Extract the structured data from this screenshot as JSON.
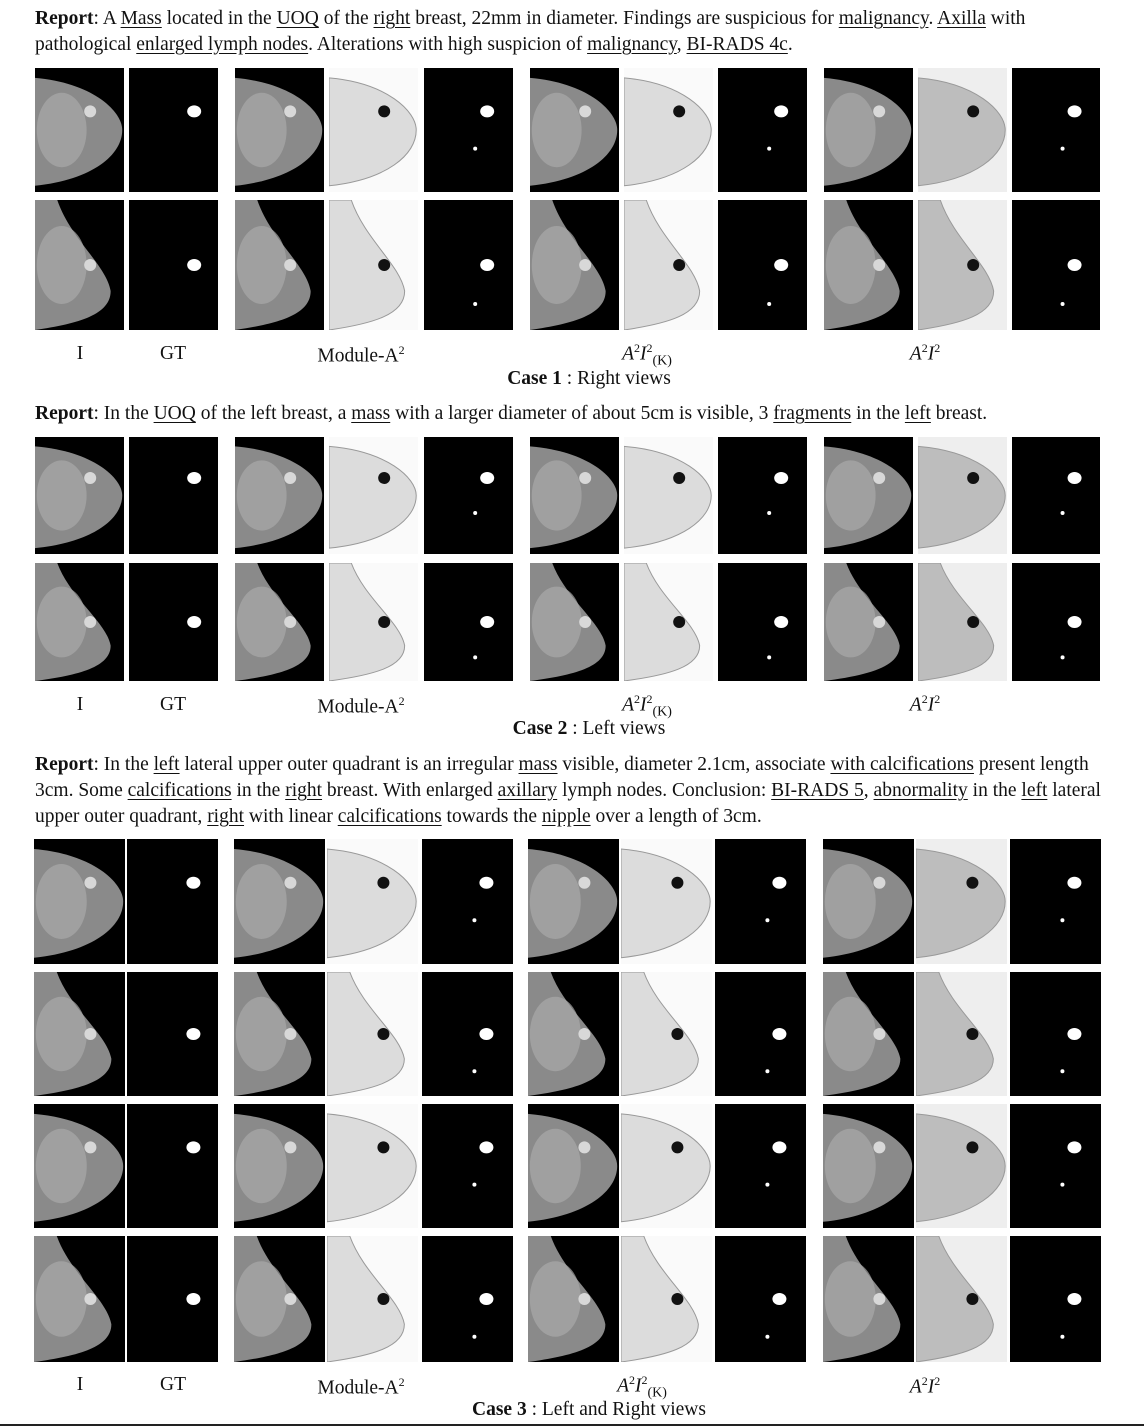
{
  "case1": {
    "report_prefix": "Report",
    "report": [
      {
        "t": ": A ",
        "u": false
      },
      {
        "t": "Mass",
        "u": true
      },
      {
        "t": " located in the ",
        "u": false
      },
      {
        "t": "UOQ",
        "u": true
      },
      {
        "t": " of the ",
        "u": false
      },
      {
        "t": "right",
        "u": true
      },
      {
        "t": " breast, 22mm in diameter. Findings are suspicious for ",
        "u": false
      },
      {
        "t": "malignancy",
        "u": true
      },
      {
        "t": ". ",
        "u": false
      },
      {
        "t": "Axilla",
        "u": true
      },
      {
        "t": " with pathological ",
        "u": false
      },
      {
        "t": "enlarged lymph nodes",
        "u": true
      },
      {
        "t": ". Alterations with high suspicion of ",
        "u": false
      },
      {
        "t": "malignancy",
        "u": true
      },
      {
        "t": ", ",
        "u": false
      },
      {
        "t": "BI-RADS 4c",
        "u": true
      },
      {
        "t": ".",
        "u": false
      }
    ],
    "caption_bold": "Case 1",
    "caption_rest": " : Right views"
  },
  "case2": {
    "report_prefix": "Report",
    "report": [
      {
        "t": ": In the ",
        "u": false
      },
      {
        "t": "UOQ",
        "u": true
      },
      {
        "t": " of the left breast, a ",
        "u": false
      },
      {
        "t": "mass",
        "u": true
      },
      {
        "t": " with a larger diameter of about 5cm is visible, 3 ",
        "u": false
      },
      {
        "t": "fragments",
        "u": true
      },
      {
        "t": " in the ",
        "u": false
      },
      {
        "t": "left",
        "u": true
      },
      {
        "t": " breast.",
        "u": false
      }
    ],
    "caption_bold": "Case 2",
    "caption_rest": " : Left views"
  },
  "case3": {
    "report_prefix": "Report",
    "report": [
      {
        "t": ": In the ",
        "u": false
      },
      {
        "t": "left",
        "u": true
      },
      {
        "t": " lateral upper outer quadrant is an irregular ",
        "u": false
      },
      {
        "t": "mass",
        "u": true
      },
      {
        "t": " visible, diameter 2.1cm, associate ",
        "u": false
      },
      {
        "t": "with calcifications",
        "u": true
      },
      {
        "t": " present length 3cm. Some ",
        "u": false
      },
      {
        "t": "calcifications",
        "u": true
      },
      {
        "t": " in the ",
        "u": false
      },
      {
        "t": "right",
        "u": true
      },
      {
        "t": " breast. With enlarged ",
        "u": false
      },
      {
        "t": "axillary",
        "u": true
      },
      {
        "t": " lymph nodes. Conclusion: ",
        "u": false
      },
      {
        "t": "BI-RADS 5",
        "u": true
      },
      {
        "t": ", ",
        "u": false
      },
      {
        "t": "abnormality",
        "u": true
      },
      {
        "t": " in the ",
        "u": false
      },
      {
        "t": "left",
        "u": true
      },
      {
        "t": " lateral upper outer quadrant, ",
        "u": false
      },
      {
        "t": "right",
        "u": true
      },
      {
        "t": " with linear ",
        "u": false
      },
      {
        "t": "calcifications",
        "u": true
      },
      {
        "t": " towards the ",
        "u": false
      },
      {
        "t": "nipple",
        "u": true
      },
      {
        "t": " over a length of 3cm.",
        "u": false
      }
    ],
    "caption_bold": "Case 3",
    "caption_rest": " : Left and Right views"
  },
  "columns": {
    "i": "I",
    "gt": "GT",
    "module_base": "Module-A",
    "module_sup": "2",
    "a2i2k_a": "A",
    "a2i2k_sup1": "2",
    "a2i2k_i": "I",
    "a2i2k_sup2": "2",
    "a2i2k_sub": "(K)",
    "a2i2_a": "A",
    "a2i2_sup1": "2",
    "a2i2_i": "I",
    "a2i2_sup2": "2"
  }
}
